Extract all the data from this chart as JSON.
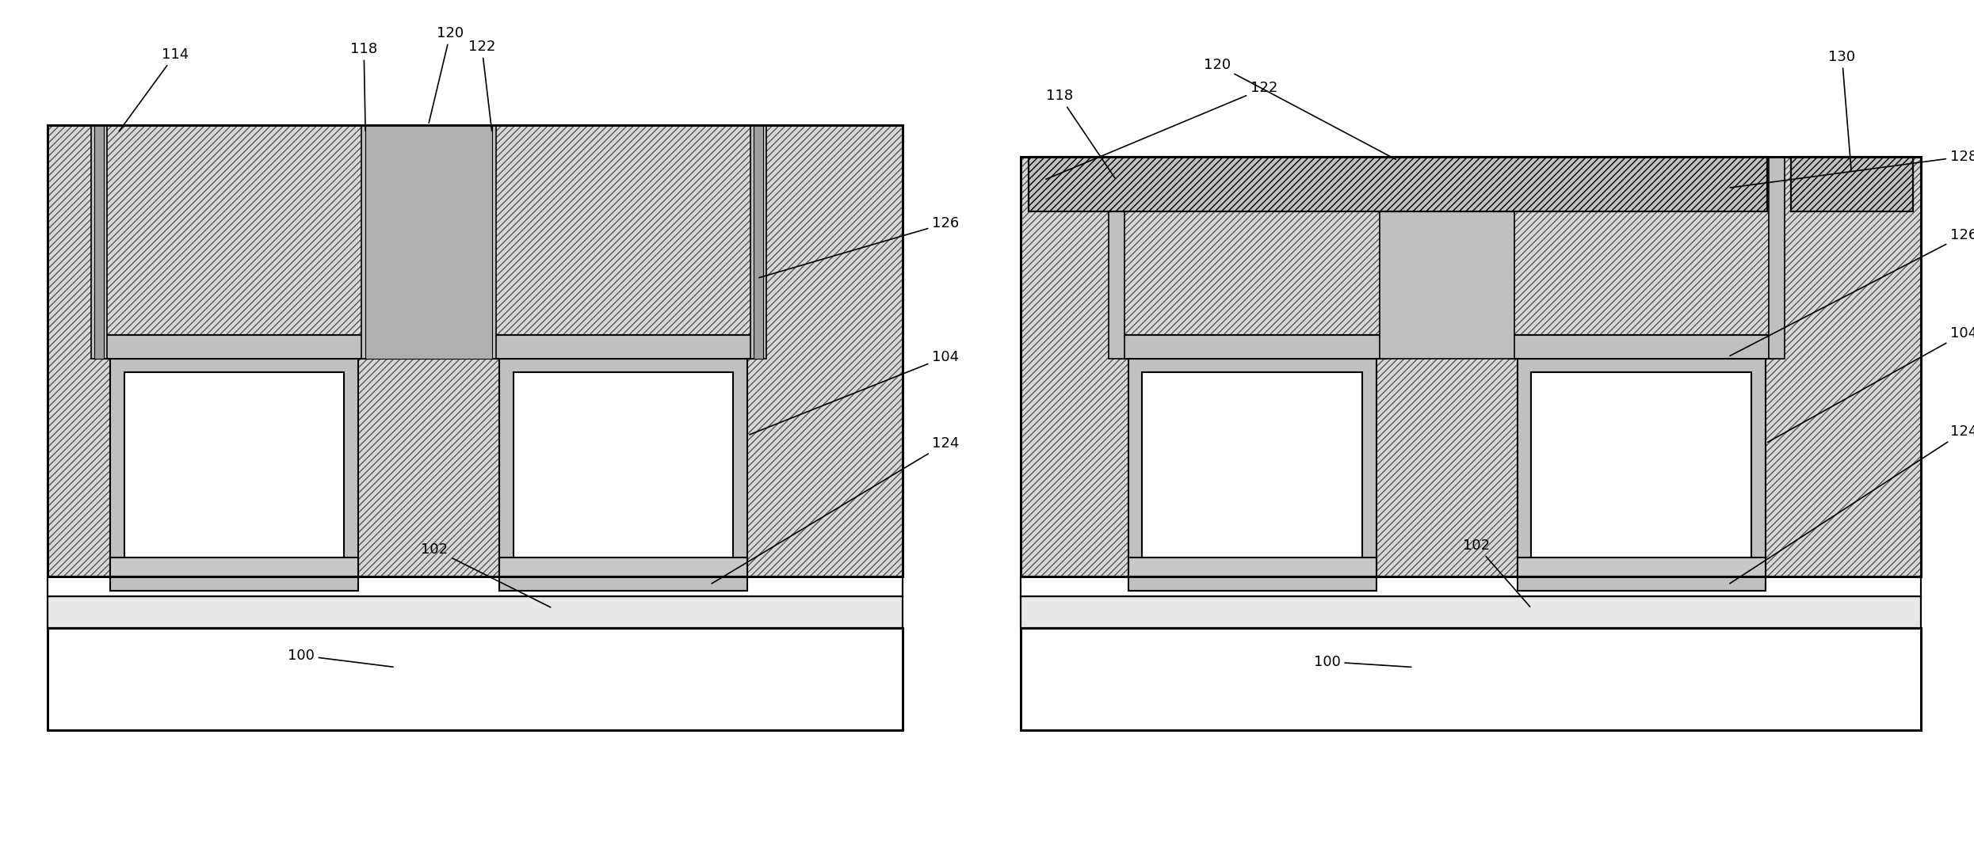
{
  "fig_width": 24.91,
  "fig_height": 10.62,
  "bg_color": "#ffffff",
  "hatch_color": "#555555",
  "hatch_pattern": "////",
  "lw": 1.5,
  "lw_thick": 2.0,
  "fs": 13
}
